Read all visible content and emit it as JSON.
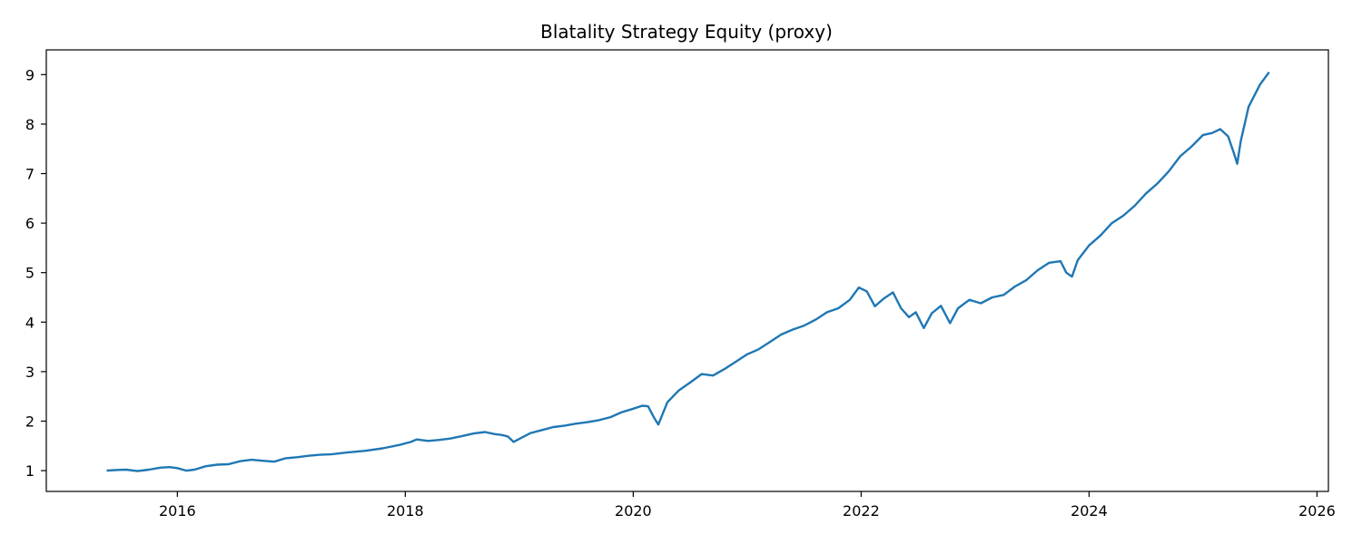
{
  "chart_data": {
    "type": "line",
    "title": "Blatality Strategy Equity (proxy)",
    "xlabel": "",
    "ylabel": "",
    "x_ticks": [
      2016,
      2018,
      2020,
      2022,
      2024,
      2026
    ],
    "x_tick_labels": [
      "2016",
      "2018",
      "2020",
      "2022",
      "2024",
      "2026"
    ],
    "y_ticks": [
      1,
      2,
      3,
      4,
      5,
      6,
      7,
      8,
      9
    ],
    "y_tick_labels": [
      "1",
      "2",
      "3",
      "4",
      "5",
      "6",
      "7",
      "8",
      "9"
    ],
    "xlim": [
      2014.85,
      2026.1
    ],
    "ylim": [
      0.58,
      9.5
    ],
    "grid": false,
    "legend": "none",
    "line_color": "#1f77b4",
    "series": [
      {
        "x": [
          2015.38,
          2015.45,
          2015.55,
          2015.65,
          2015.75,
          2015.85,
          2015.93,
          2016.0,
          2016.08,
          2016.15,
          2016.25,
          2016.35,
          2016.45,
          2016.55,
          2016.65,
          2016.75,
          2016.85,
          2016.95,
          2017.05,
          2017.15,
          2017.25,
          2017.35,
          2017.5,
          2017.65,
          2017.8,
          2017.95,
          2018.05,
          2018.1,
          2018.2,
          2018.3,
          2018.4,
          2018.5,
          2018.6,
          2018.7,
          2018.78,
          2018.85,
          2018.9,
          2018.95,
          2019.0,
          2019.1,
          2019.2,
          2019.3,
          2019.4,
          2019.5,
          2019.6,
          2019.7,
          2019.8,
          2019.9,
          2020.0,
          2020.08,
          2020.13,
          2020.18,
          2020.22,
          2020.3,
          2020.4,
          2020.5,
          2020.6,
          2020.7,
          2020.8,
          2020.9,
          2021.0,
          2021.1,
          2021.2,
          2021.3,
          2021.4,
          2021.5,
          2021.6,
          2021.7,
          2021.8,
          2021.9,
          2021.98,
          2022.05,
          2022.12,
          2022.2,
          2022.28,
          2022.35,
          2022.42,
          2022.48,
          2022.55,
          2022.62,
          2022.7,
          2022.78,
          2022.85,
          2022.95,
          2023.05,
          2023.15,
          2023.25,
          2023.35,
          2023.45,
          2023.55,
          2023.65,
          2023.75,
          2023.8,
          2023.85,
          2023.9,
          2024.0,
          2024.1,
          2024.2,
          2024.3,
          2024.4,
          2024.5,
          2024.6,
          2024.7,
          2024.8,
          2024.9,
          2025.0,
          2025.08,
          2025.15,
          2025.22,
          2025.27,
          2025.3,
          2025.33,
          2025.4,
          2025.5,
          2025.58
        ],
        "y": [
          1.0,
          1.01,
          1.02,
          0.99,
          1.02,
          1.06,
          1.07,
          1.05,
          1.0,
          1.02,
          1.09,
          1.12,
          1.13,
          1.19,
          1.22,
          1.2,
          1.18,
          1.25,
          1.27,
          1.3,
          1.32,
          1.33,
          1.37,
          1.4,
          1.45,
          1.52,
          1.58,
          1.63,
          1.6,
          1.62,
          1.65,
          1.7,
          1.75,
          1.78,
          1.74,
          1.72,
          1.69,
          1.58,
          1.64,
          1.76,
          1.82,
          1.88,
          1.91,
          1.95,
          1.98,
          2.02,
          2.08,
          2.18,
          2.25,
          2.31,
          2.3,
          2.08,
          1.93,
          2.38,
          2.62,
          2.78,
          2.95,
          2.92,
          3.05,
          3.2,
          3.35,
          3.45,
          3.6,
          3.75,
          3.85,
          3.93,
          4.05,
          4.2,
          4.28,
          4.45,
          4.7,
          4.62,
          4.32,
          4.48,
          4.6,
          4.28,
          4.1,
          4.2,
          3.88,
          4.18,
          4.33,
          3.98,
          4.28,
          4.45,
          4.38,
          4.5,
          4.55,
          4.72,
          4.85,
          5.05,
          5.2,
          5.23,
          5.0,
          4.92,
          5.25,
          5.55,
          5.75,
          6.0,
          6.15,
          6.35,
          6.6,
          6.8,
          7.05,
          7.35,
          7.55,
          7.78,
          7.82,
          7.9,
          7.75,
          7.42,
          7.2,
          7.65,
          8.35,
          8.8,
          9.05
        ]
      }
    ]
  }
}
